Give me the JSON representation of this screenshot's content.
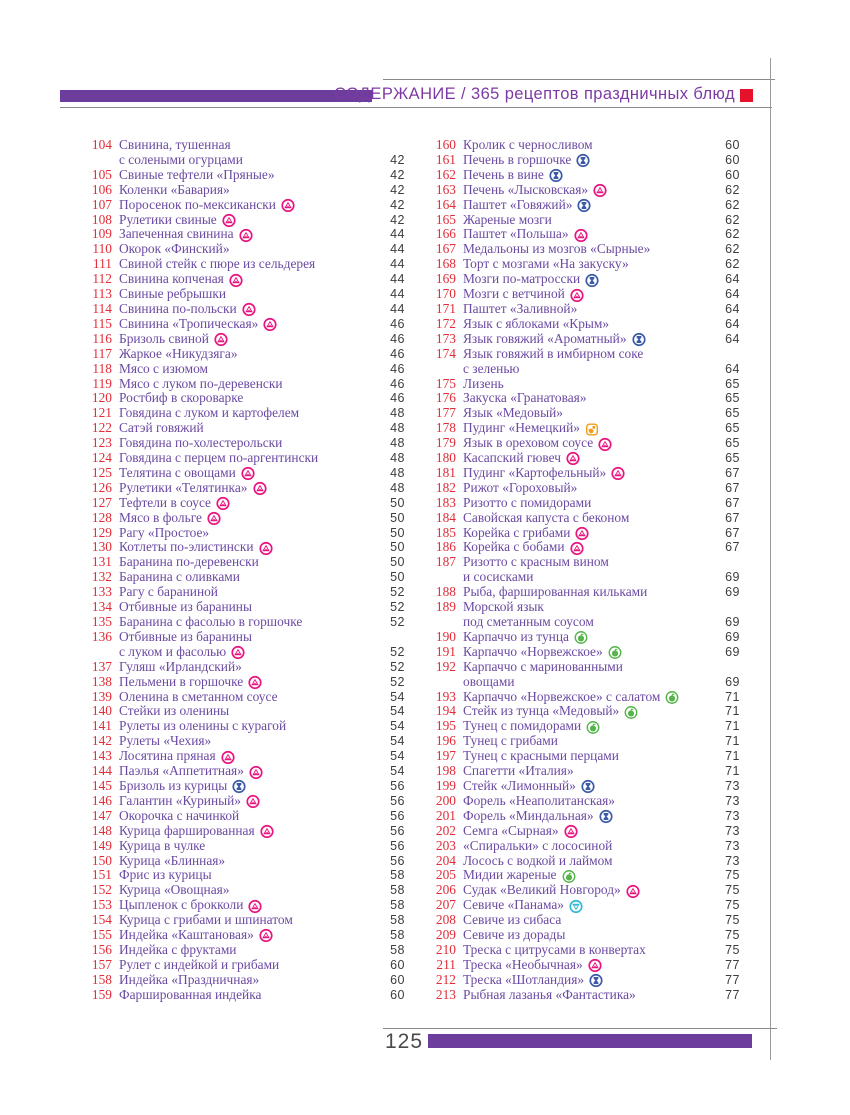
{
  "header": {
    "title": "СОДЕРЖАНИЕ / 365 рецептов праздничных блюд",
    "accent_color": "#6c3d9c",
    "title_color": "#7e3aa4",
    "marker_color": "#e6122c"
  },
  "footer": {
    "page_number": "125",
    "accent_color": "#6c3d9c"
  },
  "colors": {
    "entry_number": "#e22c38",
    "entry_title": "#6b4aa2",
    "entry_page": "#3d3d3d"
  },
  "icons": {
    "triangle": {
      "label": "triangle-in-circle",
      "color": "#e8147f"
    },
    "hourglass": {
      "label": "hourglass-in-circle",
      "color": "#3b5aa8"
    },
    "apple": {
      "label": "apple-in-circle",
      "color": "#55b44a"
    },
    "baby": {
      "label": "baby-in-rounded-square",
      "color": "#f49c15"
    },
    "funnel": {
      "label": "triangle-down-in-circle",
      "color": "#30b9d2"
    }
  },
  "columns": [
    {
      "entries": [
        {
          "n": "104",
          "t": "Свинина, тушенная",
          "w": "с солеными огурцами",
          "p": "42"
        },
        {
          "n": "105",
          "t": "Свиные тефтели «Пряные»",
          "p": "42"
        },
        {
          "n": "106",
          "t": "Коленки «Бавария»",
          "p": "42"
        },
        {
          "n": "107",
          "t": "Поросенок по-мексикански",
          "i": "triangle",
          "p": "42"
        },
        {
          "n": "108",
          "t": "Рулетики свиные",
          "i": "triangle",
          "p": "42"
        },
        {
          "n": "109",
          "t": "Запеченная свинина",
          "i": "triangle",
          "p": "44"
        },
        {
          "n": "110",
          "t": "Окорок «Финский»",
          "p": "44"
        },
        {
          "n": "111",
          "t": "Свиной стейк с пюре из сельдерея",
          "p": "44"
        },
        {
          "n": "112",
          "t": "Свинина копченая",
          "i": "triangle",
          "p": "44"
        },
        {
          "n": "113",
          "t": "Свиные ребрышки",
          "p": "44"
        },
        {
          "n": "114",
          "t": "Свинина по-польски",
          "i": "triangle",
          "p": "44"
        },
        {
          "n": "115",
          "t": "Свинина «Тропическая»",
          "i": "triangle",
          "p": "46"
        },
        {
          "n": "116",
          "t": "Бризоль свиной",
          "i": "triangle",
          "p": "46"
        },
        {
          "n": "117",
          "t": "Жаркое «Никудзяга»",
          "p": "46"
        },
        {
          "n": "118",
          "t": "Мясо с изюмом",
          "p": "46"
        },
        {
          "n": "119",
          "t": "Мясо с луком по-деревенски",
          "p": "46"
        },
        {
          "n": "120",
          "t": "Ростбиф в скороварке",
          "p": "46"
        },
        {
          "n": "121",
          "t": "Говядина с луком и картофелем",
          "p": "48"
        },
        {
          "n": "122",
          "t": "Сатэй говяжий",
          "p": "48"
        },
        {
          "n": "123",
          "t": "Говядина по-холестерольски",
          "p": "48"
        },
        {
          "n": "124",
          "t": "Говядина с перцем по-аргентински",
          "p": "48"
        },
        {
          "n": "125",
          "t": "Телятина с овощами",
          "i": "triangle",
          "p": "48"
        },
        {
          "n": "126",
          "t": "Рулетики «Телятинка»",
          "i": "triangle",
          "p": "48"
        },
        {
          "n": "127",
          "t": "Тефтели в соусе",
          "i": "triangle",
          "p": "50"
        },
        {
          "n": "128",
          "t": "Мясо в фольге",
          "i": "triangle",
          "p": "50"
        },
        {
          "n": "129",
          "t": "Рагу «Простое»",
          "p": "50"
        },
        {
          "n": "130",
          "t": "Котлеты по-элистински",
          "i": "triangle",
          "p": "50"
        },
        {
          "n": "131",
          "t": "Баранина по-деревенски",
          "p": "50"
        },
        {
          "n": "132",
          "t": "Баранина с оливками",
          "p": "50"
        },
        {
          "n": "133",
          "t": "Рагу с бараниной",
          "p": "52"
        },
        {
          "n": "134",
          "t": "Отбивные из баранины",
          "p": "52"
        },
        {
          "n": "135",
          "t": "Баранина с фасолью в горшочке",
          "p": "52"
        },
        {
          "n": "136",
          "t": "Отбивные из баранины",
          "w": "с луком и фасолью",
          "i": "triangle",
          "iw": true,
          "p": "52"
        },
        {
          "n": "137",
          "t": "Гуляш «Ирландский»",
          "p": "52"
        },
        {
          "n": "138",
          "t": "Пельмени в горшочке",
          "i": "triangle",
          "p": "52"
        },
        {
          "n": "139",
          "t": "Оленина в сметанном соусе",
          "p": "54"
        },
        {
          "n": "140",
          "t": "Стейки из оленины",
          "p": "54"
        },
        {
          "n": "141",
          "t": "Рулеты из оленины с курагой",
          "p": "54"
        },
        {
          "n": "142",
          "t": "Рулеты «Чехия»",
          "p": "54"
        },
        {
          "n": "143",
          "t": "Лосятина пряная",
          "i": "triangle",
          "p": "54"
        },
        {
          "n": "144",
          "t": "Паэлья «Аппетитная»",
          "i": "triangle",
          "p": "54"
        },
        {
          "n": "145",
          "t": "Бризоль из курицы",
          "i": "hourglass",
          "p": "56"
        },
        {
          "n": "146",
          "t": "Галантин «Куриный»",
          "i": "triangle",
          "p": "56"
        },
        {
          "n": "147",
          "t": "Окорочка с начинкой",
          "p": "56"
        },
        {
          "n": "148",
          "t": "Курица фаршированная",
          "i": "triangle",
          "p": "56"
        },
        {
          "n": "149",
          "t": "Курица в чулке",
          "p": "56"
        },
        {
          "n": "150",
          "t": "Курица «Блинная»",
          "p": "56"
        },
        {
          "n": "151",
          "t": "Фрис из курицы",
          "p": "58"
        },
        {
          "n": "152",
          "t": "Курица «Овощная»",
          "p": "58"
        },
        {
          "n": "153",
          "t": "Цыпленок с брокколи",
          "i": "triangle",
          "p": "58"
        },
        {
          "n": "154",
          "t": "Курица с грибами и шпинатом",
          "p": "58"
        },
        {
          "n": "155",
          "t": "Индейка «Каштановая»",
          "i": "triangle",
          "p": "58"
        },
        {
          "n": "156",
          "t": "Индейка с фруктами",
          "p": "58"
        },
        {
          "n": "157",
          "t": "Рулет с индейкой и грибами",
          "p": "60"
        },
        {
          "n": "158",
          "t": "Индейка «Праздничная»",
          "p": "60"
        },
        {
          "n": "159",
          "t": "Фаршированная индейка",
          "p": "60"
        }
      ]
    },
    {
      "entries": [
        {
          "n": "160",
          "t": "Кролик с черносливом",
          "p": "60"
        },
        {
          "n": "161",
          "t": "Печень в горшочке",
          "i": "hourglass",
          "p": "60"
        },
        {
          "n": "162",
          "t": "Печень в вине",
          "i": "hourglass",
          "p": "60"
        },
        {
          "n": "163",
          "t": "Печень «Лысковская»",
          "i": "triangle",
          "p": "62"
        },
        {
          "n": "164",
          "t": "Паштет «Говяжий»",
          "i": "hourglass",
          "p": "62"
        },
        {
          "n": "165",
          "t": "Жареные мозги",
          "p": "62"
        },
        {
          "n": "166",
          "t": "Паштет «Польша»",
          "i": "triangle",
          "p": "62"
        },
        {
          "n": "167",
          "t": "Медальоны из мозгов «Сырные»",
          "p": "62"
        },
        {
          "n": "168",
          "t": "Торт с мозгами «На закуску»",
          "p": "62"
        },
        {
          "n": "169",
          "t": "Мозги по-матросски",
          "i": "hourglass",
          "p": "64"
        },
        {
          "n": "170",
          "t": "Мозги с ветчиной",
          "i": "triangle",
          "p": "64"
        },
        {
          "n": "171",
          "t": "Паштет «Заливной»",
          "p": "64"
        },
        {
          "n": "172",
          "t": "Язык с яблоками «Крым»",
          "p": "64"
        },
        {
          "n": "173",
          "t": "Язык говяжий «Ароматный»",
          "i": "hourglass",
          "p": "64"
        },
        {
          "n": "174",
          "t": "Язык говяжий в имбирном соке",
          "w": "с зеленью",
          "p": "64"
        },
        {
          "n": "175",
          "t": "Лизень",
          "p": "65"
        },
        {
          "n": "176",
          "t": "Закуска «Гранатовая»",
          "p": "65"
        },
        {
          "n": "177",
          "t": "Язык «Медовый»",
          "p": "65"
        },
        {
          "n": "178",
          "t": "Пудинг «Немецкий»",
          "i": "baby",
          "p": "65"
        },
        {
          "n": "179",
          "t": "Язык в ореховом соусе",
          "i": "triangle",
          "p": "65"
        },
        {
          "n": "180",
          "t": "Касапский гювеч",
          "i": "triangle",
          "p": "65"
        },
        {
          "n": "181",
          "t": "Пудинг «Картофельный»",
          "i": "triangle",
          "p": "67"
        },
        {
          "n": "182",
          "t": "Рижот «Гороховый»",
          "p": "67"
        },
        {
          "n": "183",
          "t": "Ризотто с помидорами",
          "p": "67"
        },
        {
          "n": "184",
          "t": "Савойская капуста с беконом",
          "p": "67"
        },
        {
          "n": "185",
          "t": "Корейка с грибами",
          "i": "triangle",
          "p": "67"
        },
        {
          "n": "186",
          "t": "Корейка с бобами",
          "i": "triangle",
          "p": "67"
        },
        {
          "n": "187",
          "t": "Ризотто с красным вином",
          "w": "и сосисками",
          "p": "69"
        },
        {
          "n": "188",
          "t": "Рыба, фаршированная кильками",
          "p": "69"
        },
        {
          "n": "189",
          "t": "Морской язык",
          "w": "под сметанным соусом",
          "p": "69"
        },
        {
          "n": "190",
          "t": "Карпаччо из тунца",
          "i": "apple",
          "p": "69"
        },
        {
          "n": "191",
          "t": "Карпаччо «Норвежское»",
          "i": "apple",
          "p": "69"
        },
        {
          "n": "192",
          "t": "Карпаччо с маринованными",
          "w": "овощами",
          "p": "69"
        },
        {
          "n": "193",
          "t": "Карпаччо «Норвежское» с салатом",
          "i": "apple",
          "p": "71"
        },
        {
          "n": "194",
          "t": "Стейк из тунца «Медовый»",
          "i": "apple",
          "p": "71"
        },
        {
          "n": "195",
          "t": "Тунец с помидорами",
          "i": "apple",
          "p": "71"
        },
        {
          "n": "196",
          "t": "Тунец с грибами",
          "p": "71"
        },
        {
          "n": "197",
          "t": "Тунец с красными перцами",
          "p": "71"
        },
        {
          "n": "198",
          "t": "Спагетти «Италия»",
          "p": "71"
        },
        {
          "n": "199",
          "t": "Стейк «Лимонный»",
          "i": "hourglass",
          "p": "73"
        },
        {
          "n": "200",
          "t": "Форель «Неаполитанская»",
          "p": "73"
        },
        {
          "n": "201",
          "t": "Форель «Миндальная»",
          "i": "hourglass",
          "p": "73"
        },
        {
          "n": "202",
          "t": "Семга «Сырная»",
          "i": "triangle",
          "p": "73"
        },
        {
          "n": "203",
          "t": "«Спиральки» с лососиной",
          "p": "73"
        },
        {
          "n": "204",
          "t": "Лосось с водкой и лаймом",
          "p": "73"
        },
        {
          "n": "205",
          "t": "Мидии жареные",
          "i": "apple",
          "p": "75"
        },
        {
          "n": "206",
          "t": "Судак «Великий Новгород»",
          "i": "triangle",
          "p": "75"
        },
        {
          "n": "207",
          "t": "Севиче «Панама»",
          "i": "funnel",
          "p": "75"
        },
        {
          "n": "208",
          "t": "Севиче из сибаса",
          "p": "75"
        },
        {
          "n": "209",
          "t": "Севиче из дорады",
          "p": "75"
        },
        {
          "n": "210",
          "t": "Треска с цитрусами в конвертах",
          "p": "75"
        },
        {
          "n": "211",
          "t": "Треска «Необычная»",
          "i": "triangle",
          "p": "77"
        },
        {
          "n": "212",
          "t": "Треска «Шотландия»",
          "i": "hourglass",
          "p": "77"
        },
        {
          "n": "213",
          "t": "Рыбная лазанья «Фантастика»",
          "p": "77"
        }
      ]
    }
  ]
}
